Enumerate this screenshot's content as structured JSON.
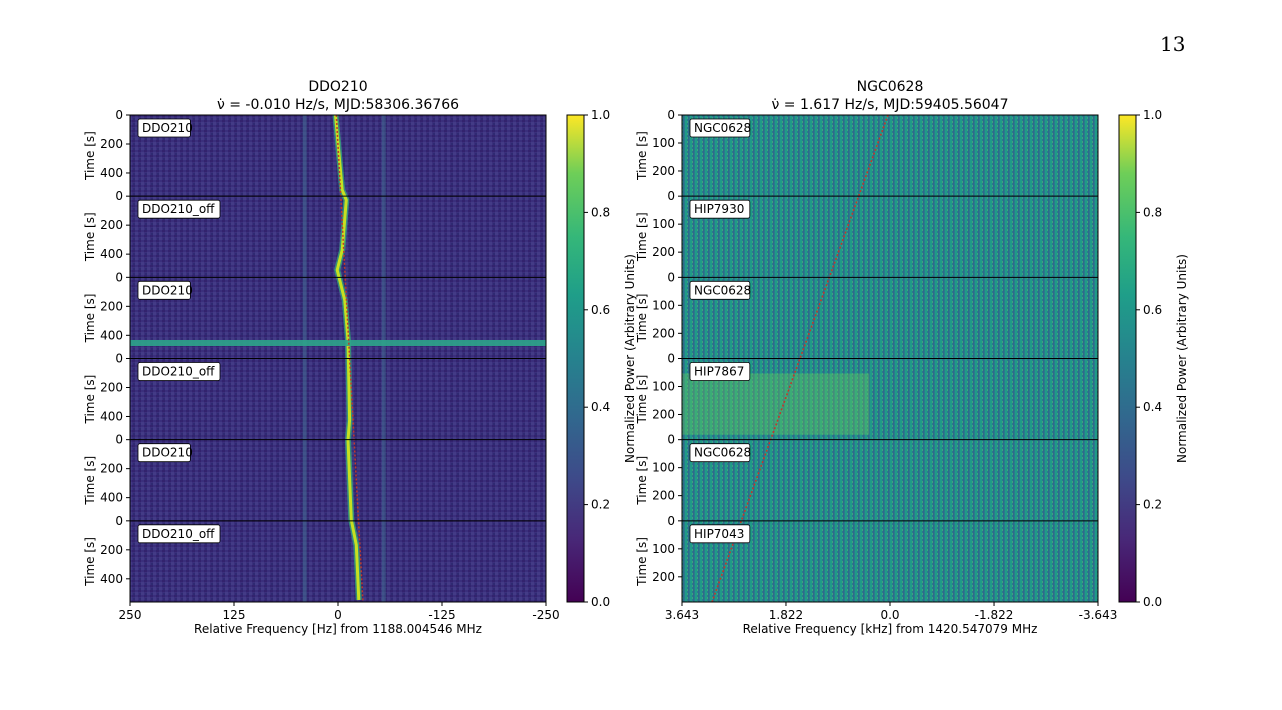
{
  "page_number": "13",
  "chart_data": [
    {
      "type": "heatmap",
      "title": "DDO210",
      "subtitle": "ν̇ = -0.010 Hz/s, MJD:58306.36766",
      "xlabel": "Relative Frequency [Hz] from 1188.004546 MHz",
      "ylabel": "Time [s]",
      "xlim": [
        250,
        -250
      ],
      "xticks": [
        "250",
        "125",
        "0",
        "-125",
        "-250"
      ],
      "panel_ylim": [
        0,
        560
      ],
      "panel_yticks": [
        "0",
        "200",
        "400"
      ],
      "panels": [
        "DDO210",
        "DDO210_off",
        "DDO210",
        "DDO210_off",
        "DDO210",
        "DDO210_off"
      ],
      "colorbar": {
        "label": "Normalized Power (Arbitrary Units)",
        "range": [
          0,
          1
        ],
        "ticks": [
          "0.0",
          "0.2",
          "0.4",
          "0.6",
          "0.8",
          "1.0"
        ]
      },
      "signal_drift_rate_hz_s": -0.01,
      "fit_line_color": "#c0392b"
    },
    {
      "type": "heatmap",
      "title": "NGC0628",
      "subtitle": "ν̇ = 1.617 Hz/s, MJD:59405.56047",
      "xlabel": "Relative Frequency [kHz] from 1420.547079 MHz",
      "ylabel": "Time [s]",
      "xlim": [
        3.643,
        -3.643
      ],
      "xticks": [
        "3.643",
        "1.822",
        "0.0",
        "-1.822",
        "-3.643"
      ],
      "panel_ylim": [
        0,
        290
      ],
      "panel_yticks": [
        "0",
        "100",
        "200"
      ],
      "panels": [
        "NGC0628",
        "HIP7930",
        "NGC0628",
        "HIP7867",
        "NGC0628",
        "HIP7043"
      ],
      "colorbar": {
        "label": "Normalized Power (Arbitrary Units)",
        "range": [
          0,
          1
        ],
        "ticks": [
          "0.0",
          "0.2",
          "0.4",
          "0.6",
          "0.8",
          "1.0"
        ]
      },
      "signal_drift_rate_hz_s": 1.617,
      "fit_line_color": "#c0392b"
    }
  ]
}
